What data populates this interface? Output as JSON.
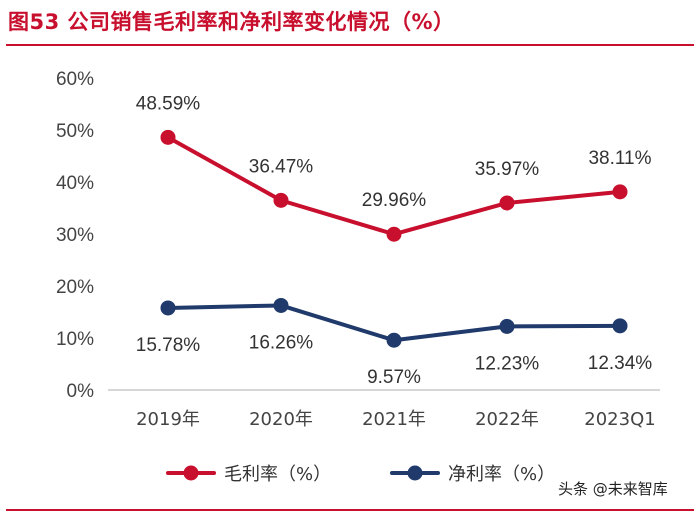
{
  "figure": {
    "title": "图53  公司销售毛利率和净利率变化情况（%）",
    "watermark": "头条 @未来智库"
  },
  "chart_data": {
    "type": "line",
    "title": "公司销售毛利率和净利率变化情况（%）",
    "categories": [
      "2019年",
      "2020年",
      "2021年",
      "2022年",
      "2023Q1"
    ],
    "yticks": [
      "0%",
      "10%",
      "20%",
      "30%",
      "40%",
      "50%",
      "60%"
    ],
    "ylim": [
      0,
      60
    ],
    "grid": false,
    "legend_position": "bottom",
    "series": [
      {
        "name": "毛利率（%）",
        "color": "#c8102e",
        "values": [
          48.59,
          36.47,
          29.96,
          35.97,
          38.11
        ],
        "labels": [
          "48.59%",
          "36.47%",
          "29.96%",
          "35.97%",
          "38.11%"
        ],
        "label_position": "above"
      },
      {
        "name": "净利率（%）",
        "color": "#1f3a6b",
        "values": [
          15.78,
          16.26,
          9.57,
          12.23,
          12.34
        ],
        "labels": [
          "15.78%",
          "16.26%",
          "9.57%",
          "12.23%",
          "12.34%"
        ],
        "label_position": "below"
      }
    ]
  }
}
